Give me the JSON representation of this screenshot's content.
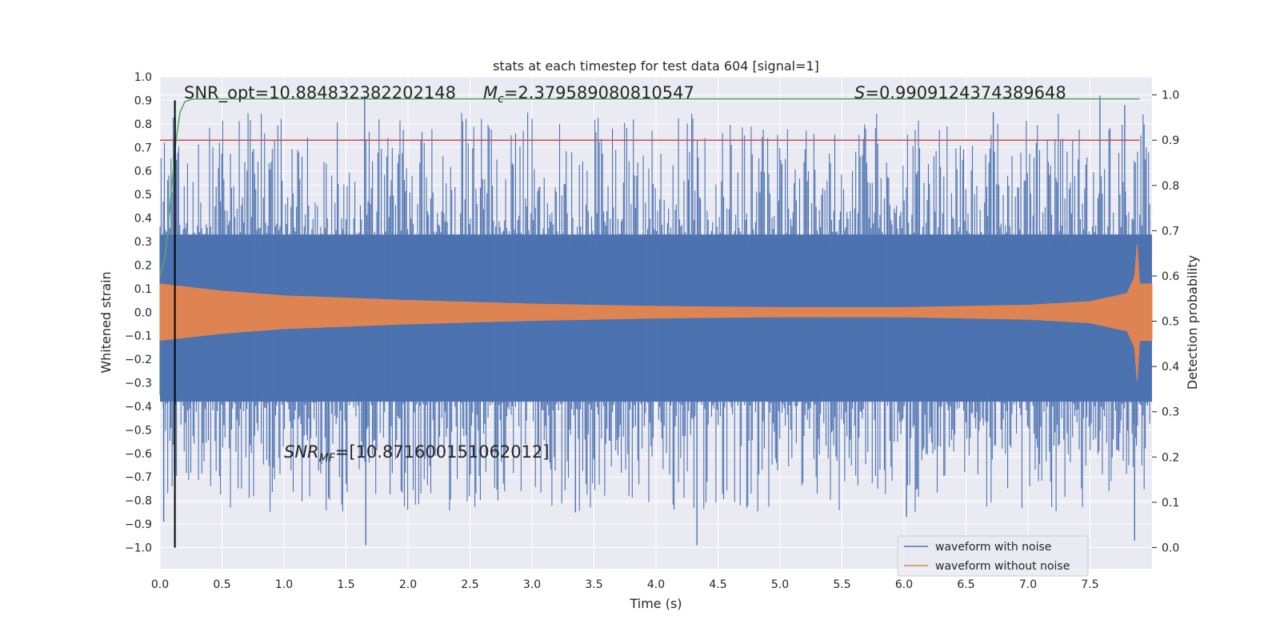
{
  "chart_data": {
    "type": "line",
    "title": "stats at each timestep for test data 604 [signal=1]",
    "xlabel": "Time (s)",
    "ylabel": "Whitened strain",
    "y2label": "Detection probability",
    "xlim": [
      0.0,
      8.0
    ],
    "ylim": [
      -1.09,
      1.0
    ],
    "y2lim": [
      -0.047,
      1.04
    ],
    "x_ticks": [
      "0.0",
      "0.5",
      "1.0",
      "1.5",
      "2.0",
      "2.5",
      "3.0",
      "3.5",
      "4.0",
      "4.5",
      "5.0",
      "5.5",
      "6.0",
      "6.5",
      "7.0",
      "7.5"
    ],
    "y_ticks": [
      "1.0",
      "0.9",
      "0.8",
      "0.7",
      "0.6",
      "0.5",
      "0.4",
      "0.3",
      "0.2",
      "0.1",
      "0.0",
      "−0.1",
      "−0.2",
      "−0.3",
      "−0.4",
      "−0.5",
      "−0.6",
      "−0.7",
      "−0.8",
      "−0.9",
      "−1.0"
    ],
    "y2_ticks": [
      "1.0",
      "0.9",
      "0.8",
      "0.7",
      "0.6",
      "0.5",
      "0.4",
      "0.3",
      "0.2",
      "0.1",
      "0.0"
    ],
    "grid": true,
    "legend_position": "lower-right",
    "annotations": {
      "snr_opt": "SNR_opt=10.884832382202148",
      "mc_symbol": "M",
      "mc_sub": "c",
      "mc_value": "=2.379589080810547",
      "s_symbol": "S",
      "s_value": "=0.9909124374389648",
      "snr_mf_symbol": "SNR",
      "snr_mf_sub": "MF",
      "snr_mf_value": "=[10.871600151062012]"
    },
    "series": [
      {
        "name": "waveform with noise",
        "color": "#4c72b0",
        "peak_spikes": [
          [
            1.65,
            0.92
          ],
          [
            7.58,
            0.92
          ],
          [
            7.78,
            0.88
          ],
          [
            6.72,
            0.85
          ],
          [
            4.33,
            -0.99
          ],
          [
            1.66,
            -0.99
          ],
          [
            6.02,
            -0.87
          ],
          [
            7.86,
            -0.97
          ],
          [
            3.35,
            -0.85
          ],
          [
            0.03,
            -0.89
          ]
        ]
      },
      {
        "name": "waveform without noise",
        "color": "#dd8452",
        "envelope_x": [
          0.0,
          0.5,
          1.0,
          2.0,
          3.0,
          4.0,
          5.0,
          6.0,
          7.0,
          7.5,
          7.8,
          7.86,
          7.88,
          7.9,
          7.95,
          8.0
        ],
        "envelope_y": [
          0.12,
          0.09,
          0.07,
          0.05,
          0.035,
          0.025,
          0.02,
          0.02,
          0.03,
          0.045,
          0.08,
          0.15,
          0.29,
          0.12,
          0.12,
          0.12
        ]
      }
    ],
    "detection_probability": {
      "color": "#55a868",
      "x": [
        0.0,
        0.04,
        0.08,
        0.12,
        0.16,
        0.2,
        0.25,
        0.3,
        0.4,
        0.6,
        1.0,
        2.0,
        4.0,
        6.0,
        7.0,
        7.9
      ],
      "y": [
        0.6,
        0.64,
        0.75,
        0.88,
        0.96,
        0.985,
        0.99,
        0.991,
        0.991,
        0.991,
        0.991,
        0.991,
        0.991,
        0.991,
        0.991,
        0.991
      ]
    },
    "threshold": {
      "color": "#c44e52",
      "y2": 0.9
    },
    "marker_line": {
      "color": "#000000",
      "x": 0.12,
      "y_top": 0.9,
      "y_bottom": -1.0
    }
  }
}
